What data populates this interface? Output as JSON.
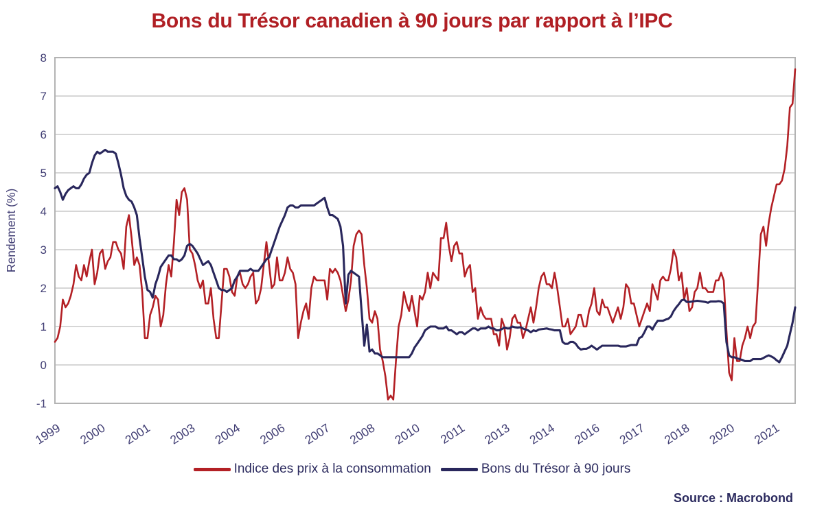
{
  "title": "Bons du Trésor canadien à 90 jours par rapport à l’IPC",
  "source": "Source : Macrobond",
  "colors": {
    "title_red": "#b01f24",
    "cpi_line": "#b32025",
    "tbill_line": "#29275c",
    "axis_text": "#413e74",
    "legend_text": "#2b2a5e"
  },
  "chart_data": {
    "type": "line",
    "title": "Bons du Trésor canadien à 90 jours par rapport à l’IPC",
    "xlabel": "",
    "ylabel": "Rendement (%)",
    "ylim": [
      -1,
      8
    ],
    "yticks": [
      -1,
      0,
      1,
      2,
      3,
      4,
      5,
      6,
      7,
      8
    ],
    "grid": "horizontal",
    "legend_position": "bottom",
    "x_start": "1999-01",
    "x_end": "2022-05",
    "frequency": "monthly",
    "xtick_positions": [
      0,
      17,
      34,
      51,
      68,
      85,
      102,
      119,
      136,
      153,
      170,
      187,
      204,
      221,
      238,
      255,
      272
    ],
    "xtick_labels": [
      "1999",
      "2000",
      "2001",
      "2003",
      "2004",
      "2006",
      "2007",
      "2008",
      "2010",
      "2011",
      "2013",
      "2014",
      "2016",
      "2017",
      "2018",
      "2020",
      "2021"
    ],
    "series": [
      {
        "name": "Indice des prix à la consommation",
        "color": "#b32025",
        "values": [
          0.6,
          0.7,
          1.0,
          1.7,
          1.5,
          1.6,
          1.8,
          2.1,
          2.6,
          2.3,
          2.2,
          2.6,
          2.3,
          2.7,
          3.0,
          2.1,
          2.4,
          2.9,
          3.0,
          2.5,
          2.7,
          2.8,
          3.2,
          3.2,
          3.0,
          2.9,
          2.5,
          3.6,
          3.9,
          3.3,
          2.6,
          2.8,
          2.6,
          1.9,
          0.7,
          0.7,
          1.3,
          1.5,
          1.8,
          1.7,
          1.0,
          1.3,
          2.1,
          2.6,
          2.3,
          3.2,
          4.3,
          3.9,
          4.5,
          4.6,
          4.3,
          3.0,
          2.9,
          2.6,
          2.2,
          2.0,
          2.2,
          1.6,
          1.6,
          2.0,
          1.2,
          0.7,
          0.7,
          1.6,
          2.5,
          2.5,
          2.3,
          1.9,
          1.8,
          2.3,
          2.4,
          2.1,
          2.0,
          2.1,
          2.3,
          2.4,
          1.6,
          1.7,
          2.0,
          2.6,
          3.2,
          2.6,
          2.0,
          2.1,
          2.8,
          2.2,
          2.2,
          2.4,
          2.8,
          2.5,
          2.4,
          2.1,
          0.7,
          1.1,
          1.4,
          1.6,
          1.2,
          2.0,
          2.3,
          2.2,
          2.2,
          2.2,
          2.2,
          1.7,
          2.5,
          2.4,
          2.5,
          2.4,
          2.2,
          1.8,
          1.4,
          1.7,
          2.2,
          3.1,
          3.4,
          3.5,
          3.4,
          2.6,
          2.0,
          1.2,
          1.1,
          1.4,
          1.2,
          0.4,
          0.1,
          -0.3,
          -0.9,
          -0.8,
          -0.9,
          0.1,
          1.0,
          1.3,
          1.9,
          1.6,
          1.4,
          1.8,
          1.4,
          1.0,
          1.8,
          1.7,
          1.9,
          2.4,
          2.0,
          2.4,
          2.3,
          2.2,
          3.3,
          3.3,
          3.7,
          3.1,
          2.7,
          3.1,
          3.2,
          2.9,
          2.9,
          2.3,
          2.5,
          2.6,
          1.9,
          2.0,
          1.2,
          1.5,
          1.3,
          1.2,
          1.2,
          1.2,
          0.8,
          0.8,
          0.5,
          1.2,
          1.0,
          0.4,
          0.7,
          1.2,
          1.3,
          1.1,
          1.1,
          0.7,
          0.9,
          1.2,
          1.5,
          1.1,
          1.5,
          2.0,
          2.3,
          2.4,
          2.1,
          2.1,
          2.0,
          2.4,
          2.0,
          1.5,
          1.0,
          1.0,
          1.2,
          0.8,
          0.9,
          1.0,
          1.3,
          1.3,
          1.0,
          1.0,
          1.4,
          1.6,
          2.0,
          1.4,
          1.3,
          1.7,
          1.5,
          1.5,
          1.3,
          1.1,
          1.3,
          1.5,
          1.2,
          1.5,
          2.1,
          2.0,
          1.6,
          1.6,
          1.3,
          1.0,
          1.2,
          1.4,
          1.6,
          1.4,
          2.1,
          1.9,
          1.7,
          2.2,
          2.3,
          2.2,
          2.2,
          2.5,
          3.0,
          2.8,
          2.2,
          2.4,
          1.7,
          2.0,
          1.4,
          1.5,
          1.9,
          2.0,
          2.4,
          2.0,
          2.0,
          1.9,
          1.9,
          1.9,
          2.2,
          2.2,
          2.4,
          2.2,
          0.9,
          -0.2,
          -0.4,
          0.7,
          0.1,
          0.1,
          0.5,
          0.7,
          1.0,
          0.7,
          1.0,
          1.1,
          2.2,
          3.4,
          3.6,
          3.1,
          3.7,
          4.1,
          4.4,
          4.7,
          4.7,
          4.8,
          5.1,
          5.7,
          6.7,
          6.8,
          7.7
        ]
      },
      {
        "name": "Bons du Trésor à 90 jours",
        "color": "#29275c",
        "values": [
          4.6,
          4.65,
          4.5,
          4.3,
          4.45,
          4.55,
          4.6,
          4.65,
          4.6,
          4.6,
          4.7,
          4.85,
          4.95,
          5.0,
          5.25,
          5.45,
          5.55,
          5.5,
          5.55,
          5.6,
          5.55,
          5.55,
          5.55,
          5.5,
          5.25,
          4.95,
          4.6,
          4.4,
          4.3,
          4.25,
          4.1,
          3.9,
          3.3,
          2.8,
          2.3,
          1.95,
          1.9,
          1.75,
          2.1,
          2.3,
          2.55,
          2.65,
          2.75,
          2.85,
          2.85,
          2.75,
          2.75,
          2.7,
          2.75,
          2.85,
          3.1,
          3.15,
          3.1,
          3.0,
          2.9,
          2.75,
          2.6,
          2.65,
          2.7,
          2.6,
          2.4,
          2.2,
          2.0,
          1.95,
          1.95,
          1.9,
          1.95,
          2.0,
          2.2,
          2.3,
          2.45,
          2.45,
          2.45,
          2.45,
          2.5,
          2.45,
          2.45,
          2.45,
          2.55,
          2.65,
          2.75,
          2.8,
          3.0,
          3.2,
          3.4,
          3.6,
          3.75,
          3.9,
          4.1,
          4.15,
          4.15,
          4.1,
          4.1,
          4.15,
          4.15,
          4.15,
          4.15,
          4.15,
          4.15,
          4.2,
          4.25,
          4.3,
          4.35,
          4.1,
          3.9,
          3.9,
          3.85,
          3.8,
          3.6,
          3.1,
          1.6,
          2.35,
          2.45,
          2.4,
          2.35,
          2.3,
          1.4,
          0.5,
          1.05,
          0.35,
          0.4,
          0.3,
          0.3,
          0.25,
          0.2,
          0.2,
          0.2,
          0.2,
          0.2,
          0.2,
          0.2,
          0.2,
          0.2,
          0.2,
          0.2,
          0.3,
          0.45,
          0.55,
          0.65,
          0.75,
          0.9,
          0.95,
          1.0,
          1.0,
          1.0,
          0.95,
          0.95,
          0.95,
          1.0,
          0.9,
          0.9,
          0.85,
          0.8,
          0.85,
          0.85,
          0.8,
          0.85,
          0.9,
          0.95,
          0.95,
          0.9,
          0.95,
          0.95,
          0.95,
          1.0,
          0.95,
          0.95,
          0.9,
          0.9,
          0.93,
          0.97,
          0.95,
          0.95,
          1.0,
          0.98,
          0.97,
          0.98,
          0.95,
          0.92,
          0.9,
          0.85,
          0.9,
          0.88,
          0.92,
          0.93,
          0.94,
          0.95,
          0.93,
          0.92,
          0.9,
          0.9,
          0.9,
          0.6,
          0.55,
          0.55,
          0.6,
          0.6,
          0.55,
          0.45,
          0.4,
          0.42,
          0.42,
          0.45,
          0.5,
          0.45,
          0.4,
          0.45,
          0.5,
          0.5,
          0.5,
          0.5,
          0.5,
          0.5,
          0.5,
          0.48,
          0.48,
          0.48,
          0.5,
          0.52,
          0.52,
          0.52,
          0.7,
          0.73,
          0.85,
          1.0,
          1.0,
          0.92,
          1.05,
          1.15,
          1.15,
          1.15,
          1.18,
          1.2,
          1.26,
          1.4,
          1.5,
          1.58,
          1.68,
          1.7,
          1.64,
          1.64,
          1.65,
          1.66,
          1.67,
          1.66,
          1.65,
          1.64,
          1.62,
          1.65,
          1.65,
          1.65,
          1.66,
          1.65,
          1.6,
          0.6,
          0.25,
          0.2,
          0.2,
          0.17,
          0.15,
          0.13,
          0.1,
          0.1,
          0.1,
          0.15,
          0.15,
          0.15,
          0.15,
          0.18,
          0.22,
          0.25,
          0.22,
          0.18,
          0.12,
          0.07,
          0.2,
          0.35,
          0.5,
          0.8,
          1.1,
          1.5
        ]
      }
    ]
  }
}
